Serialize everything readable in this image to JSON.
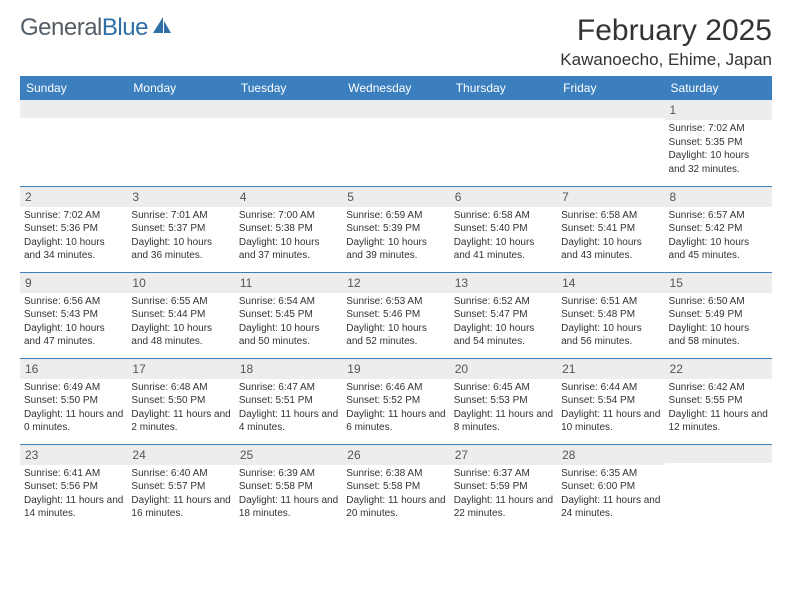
{
  "logo": {
    "text_gray": "General",
    "text_blue": "Blue"
  },
  "header": {
    "month": "February 2025",
    "location": "Kawanoecho, Ehime, Japan"
  },
  "colors": {
    "header_bg": "#3b7fbf",
    "header_fg": "#ffffff",
    "daynum_bg": "#ededed",
    "rule": "#3b7fbf"
  },
  "weekdays": [
    "Sunday",
    "Monday",
    "Tuesday",
    "Wednesday",
    "Thursday",
    "Friday",
    "Saturday"
  ],
  "weeks": [
    [
      {
        "blank": true
      },
      {
        "blank": true
      },
      {
        "blank": true
      },
      {
        "blank": true
      },
      {
        "blank": true
      },
      {
        "blank": true
      },
      {
        "day": "1",
        "sunrise": "Sunrise: 7:02 AM",
        "sunset": "Sunset: 5:35 PM",
        "daylight": "Daylight: 10 hours and 32 minutes."
      }
    ],
    [
      {
        "day": "2",
        "sunrise": "Sunrise: 7:02 AM",
        "sunset": "Sunset: 5:36 PM",
        "daylight": "Daylight: 10 hours and 34 minutes."
      },
      {
        "day": "3",
        "sunrise": "Sunrise: 7:01 AM",
        "sunset": "Sunset: 5:37 PM",
        "daylight": "Daylight: 10 hours and 36 minutes."
      },
      {
        "day": "4",
        "sunrise": "Sunrise: 7:00 AM",
        "sunset": "Sunset: 5:38 PM",
        "daylight": "Daylight: 10 hours and 37 minutes."
      },
      {
        "day": "5",
        "sunrise": "Sunrise: 6:59 AM",
        "sunset": "Sunset: 5:39 PM",
        "daylight": "Daylight: 10 hours and 39 minutes."
      },
      {
        "day": "6",
        "sunrise": "Sunrise: 6:58 AM",
        "sunset": "Sunset: 5:40 PM",
        "daylight": "Daylight: 10 hours and 41 minutes."
      },
      {
        "day": "7",
        "sunrise": "Sunrise: 6:58 AM",
        "sunset": "Sunset: 5:41 PM",
        "daylight": "Daylight: 10 hours and 43 minutes."
      },
      {
        "day": "8",
        "sunrise": "Sunrise: 6:57 AM",
        "sunset": "Sunset: 5:42 PM",
        "daylight": "Daylight: 10 hours and 45 minutes."
      }
    ],
    [
      {
        "day": "9",
        "sunrise": "Sunrise: 6:56 AM",
        "sunset": "Sunset: 5:43 PM",
        "daylight": "Daylight: 10 hours and 47 minutes."
      },
      {
        "day": "10",
        "sunrise": "Sunrise: 6:55 AM",
        "sunset": "Sunset: 5:44 PM",
        "daylight": "Daylight: 10 hours and 48 minutes."
      },
      {
        "day": "11",
        "sunrise": "Sunrise: 6:54 AM",
        "sunset": "Sunset: 5:45 PM",
        "daylight": "Daylight: 10 hours and 50 minutes."
      },
      {
        "day": "12",
        "sunrise": "Sunrise: 6:53 AM",
        "sunset": "Sunset: 5:46 PM",
        "daylight": "Daylight: 10 hours and 52 minutes."
      },
      {
        "day": "13",
        "sunrise": "Sunrise: 6:52 AM",
        "sunset": "Sunset: 5:47 PM",
        "daylight": "Daylight: 10 hours and 54 minutes."
      },
      {
        "day": "14",
        "sunrise": "Sunrise: 6:51 AM",
        "sunset": "Sunset: 5:48 PM",
        "daylight": "Daylight: 10 hours and 56 minutes."
      },
      {
        "day": "15",
        "sunrise": "Sunrise: 6:50 AM",
        "sunset": "Sunset: 5:49 PM",
        "daylight": "Daylight: 10 hours and 58 minutes."
      }
    ],
    [
      {
        "day": "16",
        "sunrise": "Sunrise: 6:49 AM",
        "sunset": "Sunset: 5:50 PM",
        "daylight": "Daylight: 11 hours and 0 minutes."
      },
      {
        "day": "17",
        "sunrise": "Sunrise: 6:48 AM",
        "sunset": "Sunset: 5:50 PM",
        "daylight": "Daylight: 11 hours and 2 minutes."
      },
      {
        "day": "18",
        "sunrise": "Sunrise: 6:47 AM",
        "sunset": "Sunset: 5:51 PM",
        "daylight": "Daylight: 11 hours and 4 minutes."
      },
      {
        "day": "19",
        "sunrise": "Sunrise: 6:46 AM",
        "sunset": "Sunset: 5:52 PM",
        "daylight": "Daylight: 11 hours and 6 minutes."
      },
      {
        "day": "20",
        "sunrise": "Sunrise: 6:45 AM",
        "sunset": "Sunset: 5:53 PM",
        "daylight": "Daylight: 11 hours and 8 minutes."
      },
      {
        "day": "21",
        "sunrise": "Sunrise: 6:44 AM",
        "sunset": "Sunset: 5:54 PM",
        "daylight": "Daylight: 11 hours and 10 minutes."
      },
      {
        "day": "22",
        "sunrise": "Sunrise: 6:42 AM",
        "sunset": "Sunset: 5:55 PM",
        "daylight": "Daylight: 11 hours and 12 minutes."
      }
    ],
    [
      {
        "day": "23",
        "sunrise": "Sunrise: 6:41 AM",
        "sunset": "Sunset: 5:56 PM",
        "daylight": "Daylight: 11 hours and 14 minutes."
      },
      {
        "day": "24",
        "sunrise": "Sunrise: 6:40 AM",
        "sunset": "Sunset: 5:57 PM",
        "daylight": "Daylight: 11 hours and 16 minutes."
      },
      {
        "day": "25",
        "sunrise": "Sunrise: 6:39 AM",
        "sunset": "Sunset: 5:58 PM",
        "daylight": "Daylight: 11 hours and 18 minutes."
      },
      {
        "day": "26",
        "sunrise": "Sunrise: 6:38 AM",
        "sunset": "Sunset: 5:58 PM",
        "daylight": "Daylight: 11 hours and 20 minutes."
      },
      {
        "day": "27",
        "sunrise": "Sunrise: 6:37 AM",
        "sunset": "Sunset: 5:59 PM",
        "daylight": "Daylight: 11 hours and 22 minutes."
      },
      {
        "day": "28",
        "sunrise": "Sunrise: 6:35 AM",
        "sunset": "Sunset: 6:00 PM",
        "daylight": "Daylight: 11 hours and 24 minutes."
      },
      {
        "blank": true
      }
    ]
  ]
}
